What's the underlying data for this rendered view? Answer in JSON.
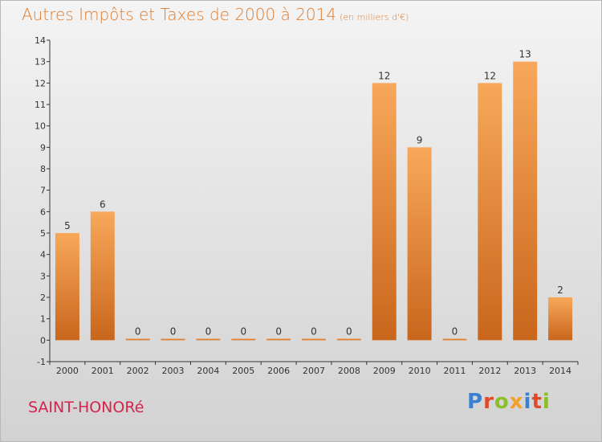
{
  "title": "Autres Impôts et Taxes de 2000 à 2014",
  "subtitle": "(en milliers d'€)",
  "commune": "SAINT-HONORé",
  "logo": {
    "text": "Proxiti",
    "letter_colors": [
      "#3a7fd0",
      "#e04a2a",
      "#8bbf2a",
      "#f2a02a",
      "#3a7fd0",
      "#e04a2a",
      "#8bbf2a"
    ]
  },
  "colors": {
    "bar_light": "#f8a85a",
    "bar_dark": "#c8661c",
    "title": "#e07a2a",
    "commune": "#d4244a"
  },
  "chart_data": {
    "type": "bar",
    "categories": [
      "2000",
      "2001",
      "2002",
      "2003",
      "2004",
      "2005",
      "2006",
      "2007",
      "2008",
      "2009",
      "2010",
      "2011",
      "2012",
      "2013",
      "2014"
    ],
    "values": [
      5,
      6,
      0,
      0,
      0,
      0,
      0,
      0,
      0,
      12,
      9,
      0,
      12,
      13,
      2
    ],
    "value_labels": [
      "5",
      "6",
      "0",
      "0",
      "0",
      "0",
      "0",
      "0",
      "0",
      "12",
      "9",
      "0",
      "12",
      "13",
      "2"
    ],
    "y_ticks": [
      "-1",
      "0",
      "1",
      "2",
      "3",
      "4",
      "5",
      "6",
      "7",
      "8",
      "9",
      "10",
      "11",
      "12",
      "13",
      "14"
    ],
    "ylim": [
      -1,
      14
    ],
    "grid": false,
    "legend": "none"
  }
}
